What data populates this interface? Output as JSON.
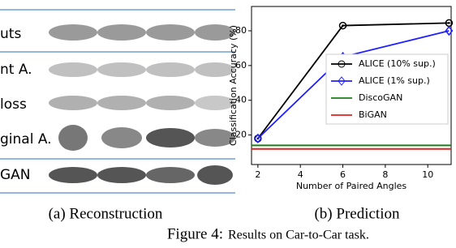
{
  "panel_a": {
    "row_labels": [
      "uts",
      "nt A.",
      "loss",
      "ginal A.",
      "GAN"
    ],
    "caption": "(a) Reconstruction"
  },
  "chart_data": {
    "type": "line",
    "caption": "(b) Prediction",
    "x_label": "Number of Paired Angles",
    "y_label": "Classification Accuracy (%)",
    "x": [
      2,
      6,
      11
    ],
    "series": [
      {
        "name": "ALICE (10% sup.)",
        "color": "#000000",
        "marker": "circle",
        "values": [
          18,
          83,
          84.5
        ]
      },
      {
        "name": "ALICE (1% sup.)",
        "color": "#1f1fff",
        "marker": "diamond",
        "values": [
          18,
          65,
          80
        ]
      }
    ],
    "hlines": [
      {
        "name": "DiscoGAN",
        "color": "#1a7f1a",
        "value": 14
      },
      {
        "name": "BiGAN",
        "color": "#e02020",
        "value": 12
      }
    ],
    "xlim": [
      1.7,
      11.1
    ],
    "ylim": [
      3,
      94
    ],
    "xticks": [
      2,
      4,
      6,
      8,
      10
    ],
    "yticks": [
      20,
      40,
      60,
      80
    ]
  },
  "figure": {
    "label": "Figure 4:",
    "text": "Results on Car-to-Car task."
  }
}
